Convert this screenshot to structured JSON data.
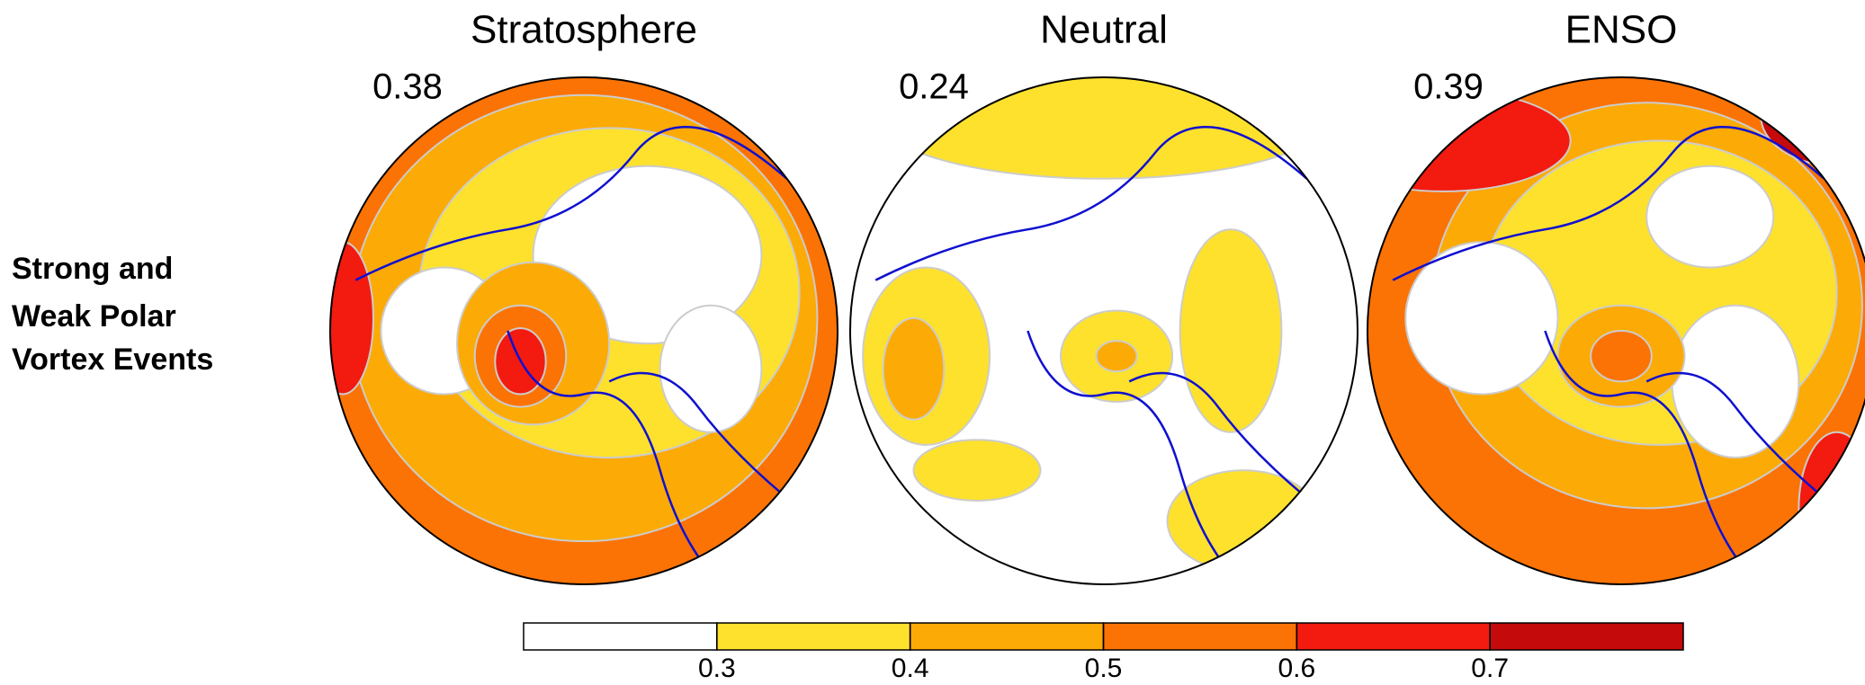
{
  "row_label": [
    "Strong and",
    "Weak Polar",
    "Vortex Events"
  ],
  "panels": [
    {
      "title": "Stratosphere",
      "value": "0.38"
    },
    {
      "title": "Neutral",
      "value": "0.24"
    },
    {
      "title": "ENSO",
      "value": "0.39"
    }
  ],
  "colorbar": {
    "colors": [
      "#ffffff",
      "#fde12d",
      "#fcaa06",
      "#fb7304",
      "#f31a10",
      "#c40a0a"
    ],
    "lim": [
      0.2,
      0.8
    ],
    "ticks": [
      0.3,
      0.4,
      0.5,
      0.6,
      0.7
    ]
  }
}
